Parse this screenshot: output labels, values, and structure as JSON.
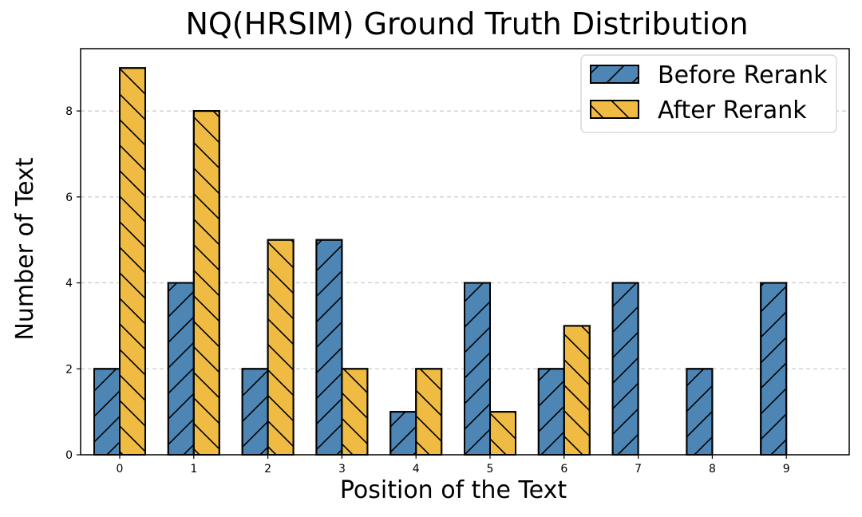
{
  "chart_data": {
    "type": "bar",
    "title": "NQ(HRSIM) Ground Truth Distribution",
    "xlabel": "Position of the Text",
    "ylabel": "Number of Text",
    "categories": [
      "0",
      "1",
      "2",
      "3",
      "4",
      "5",
      "6",
      "7",
      "8",
      "9"
    ],
    "series": [
      {
        "name": "Before Rerank",
        "values": [
          2,
          4,
          2,
          5,
          1,
          4,
          2,
          4,
          2,
          4
        ],
        "color": "#4d86b5",
        "hatch": "/"
      },
      {
        "name": "After Rerank",
        "values": [
          9,
          8,
          5,
          2,
          2,
          1,
          3,
          0,
          0,
          0
        ],
        "color": "#f0bb42",
        "hatch": "\\"
      }
    ],
    "yticks": [
      "0",
      "2",
      "4",
      "6",
      "8"
    ],
    "ylim": [
      0,
      9.45
    ],
    "grid": "y-dashed",
    "legend_position": "top-right"
  }
}
